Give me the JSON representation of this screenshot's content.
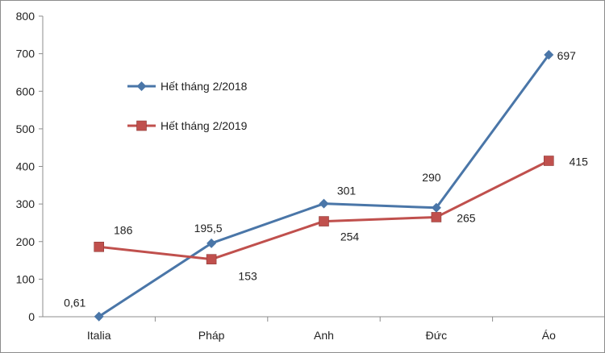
{
  "chart_data": {
    "type": "line",
    "title": "",
    "xlabel": "",
    "ylabel": "",
    "categories": [
      "Italia",
      "Pháp",
      "Anh",
      "Đức",
      "Áo"
    ],
    "ylim": [
      0,
      800
    ],
    "yticks": [
      0,
      100,
      200,
      300,
      400,
      500,
      600,
      700,
      800
    ],
    "ytick_labels": [
      "0",
      "100",
      "200",
      "300",
      "400",
      "500",
      "600",
      "700",
      "800"
    ],
    "grid": false,
    "legend_position": "left",
    "series": [
      {
        "name": "Hết tháng 2/2018",
        "color": "#4a76a8",
        "marker": "diamond",
        "values": [
          0.61,
          195.5,
          301,
          290,
          697
        ],
        "labels": [
          "0,61",
          "195,5",
          "301",
          "290",
          "697"
        ]
      },
      {
        "name": "Hết tháng 2/2019",
        "color": "#c0504d",
        "marker": "square",
        "values": [
          186,
          153,
          254,
          265,
          415
        ],
        "labels": [
          "186",
          "153",
          "254",
          "265",
          "415"
        ]
      }
    ]
  }
}
